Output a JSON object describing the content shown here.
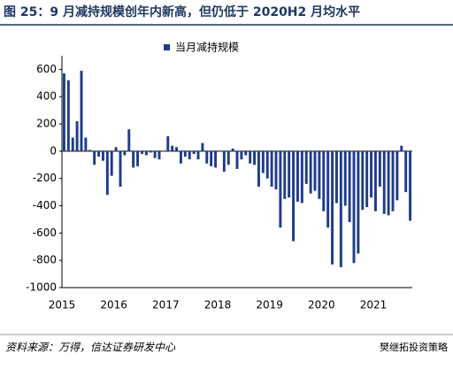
{
  "chart_data": {
    "type": "bar",
    "title": "图 25：9 月减持规模创年内新高，但仍低于 2020H2 月均水平",
    "source": "资料来源：万得，信达证券研发中心",
    "watermark": "樊继拓投资策略",
    "categories": [
      "2015",
      null,
      null,
      null,
      null,
      null,
      null,
      null,
      null,
      null,
      null,
      null,
      "2016",
      null,
      null,
      null,
      null,
      null,
      null,
      null,
      null,
      null,
      null,
      null,
      "2017",
      null,
      null,
      null,
      null,
      null,
      null,
      null,
      null,
      null,
      null,
      null,
      "2018",
      null,
      null,
      null,
      null,
      null,
      null,
      null,
      null,
      null,
      null,
      null,
      "2019",
      null,
      null,
      null,
      null,
      null,
      null,
      null,
      null,
      null,
      null,
      null,
      "2020",
      null,
      null,
      null,
      null,
      null,
      null,
      null,
      null,
      null,
      null,
      null,
      "2021",
      null,
      null,
      null,
      null,
      null,
      null,
      null,
      null
    ],
    "series": [
      {
        "name": "当月减持规模",
        "color": "#1f3c88",
        "values": [
          570,
          520,
          100,
          220,
          590,
          100,
          10,
          -100,
          -40,
          -70,
          -320,
          -180,
          30,
          -260,
          -30,
          160,
          -120,
          -110,
          -20,
          -30,
          -10,
          -50,
          -60,
          0,
          110,
          40,
          30,
          -90,
          -40,
          -60,
          -20,
          -60,
          60,
          -90,
          -110,
          -120,
          0,
          -150,
          -100,
          20,
          -130,
          -60,
          -30,
          -90,
          -100,
          -260,
          -160,
          -200,
          -260,
          -280,
          -560,
          -350,
          -340,
          -660,
          -370,
          -380,
          -240,
          -310,
          -290,
          -350,
          -440,
          -560,
          -830,
          -380,
          -850,
          -400,
          -520,
          -820,
          -750,
          -430,
          -410,
          -340,
          -440,
          -260,
          -460,
          -470,
          -440,
          -360,
          40,
          -300,
          -510
        ]
      }
    ],
    "ylim": [
      -1000,
      700
    ],
    "yticks": [
      -1000,
      -800,
      -600,
      -400,
      -200,
      0,
      200,
      400,
      600
    ]
  }
}
